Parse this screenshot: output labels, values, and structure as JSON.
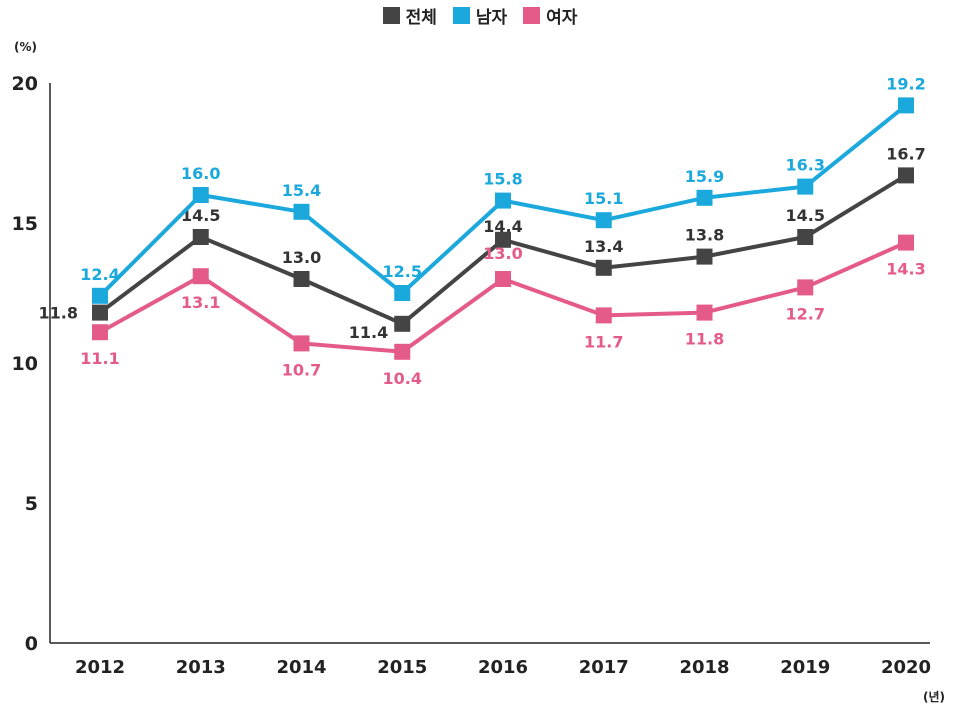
{
  "legend": {
    "items": [
      {
        "label": "전체",
        "color": "#444444"
      },
      {
        "label": "남자",
        "color": "#1ba8dd"
      },
      {
        "label": "여자",
        "color": "#e45b8a"
      }
    ]
  },
  "axis_units": {
    "y": "(%)",
    "x": "(년)"
  },
  "chart_data": {
    "type": "line",
    "title": "",
    "xlabel": "(년)",
    "ylabel": "(%)",
    "categories": [
      "2012",
      "2013",
      "2014",
      "2015",
      "2016",
      "2017",
      "2018",
      "2019",
      "2020"
    ],
    "ylim": [
      0,
      20
    ],
    "yticks": [
      0,
      5,
      10,
      15,
      20
    ],
    "grid": false,
    "legend_position": "top-center",
    "series": [
      {
        "name": "전체",
        "color": "#444444",
        "label_color": "#333333",
        "values": [
          11.8,
          14.5,
          13.0,
          11.4,
          14.4,
          13.4,
          13.8,
          14.5,
          16.7
        ]
      },
      {
        "name": "남자",
        "color": "#1ba8dd",
        "label_color": "#1ba8dd",
        "values": [
          12.4,
          16.0,
          15.4,
          12.5,
          15.8,
          15.1,
          15.9,
          16.3,
          19.2
        ]
      },
      {
        "name": "여자",
        "color": "#e45b8a",
        "label_color": "#e45b8a",
        "values": [
          11.1,
          13.1,
          10.7,
          10.4,
          13.0,
          11.7,
          11.8,
          12.7,
          14.3
        ]
      }
    ]
  }
}
